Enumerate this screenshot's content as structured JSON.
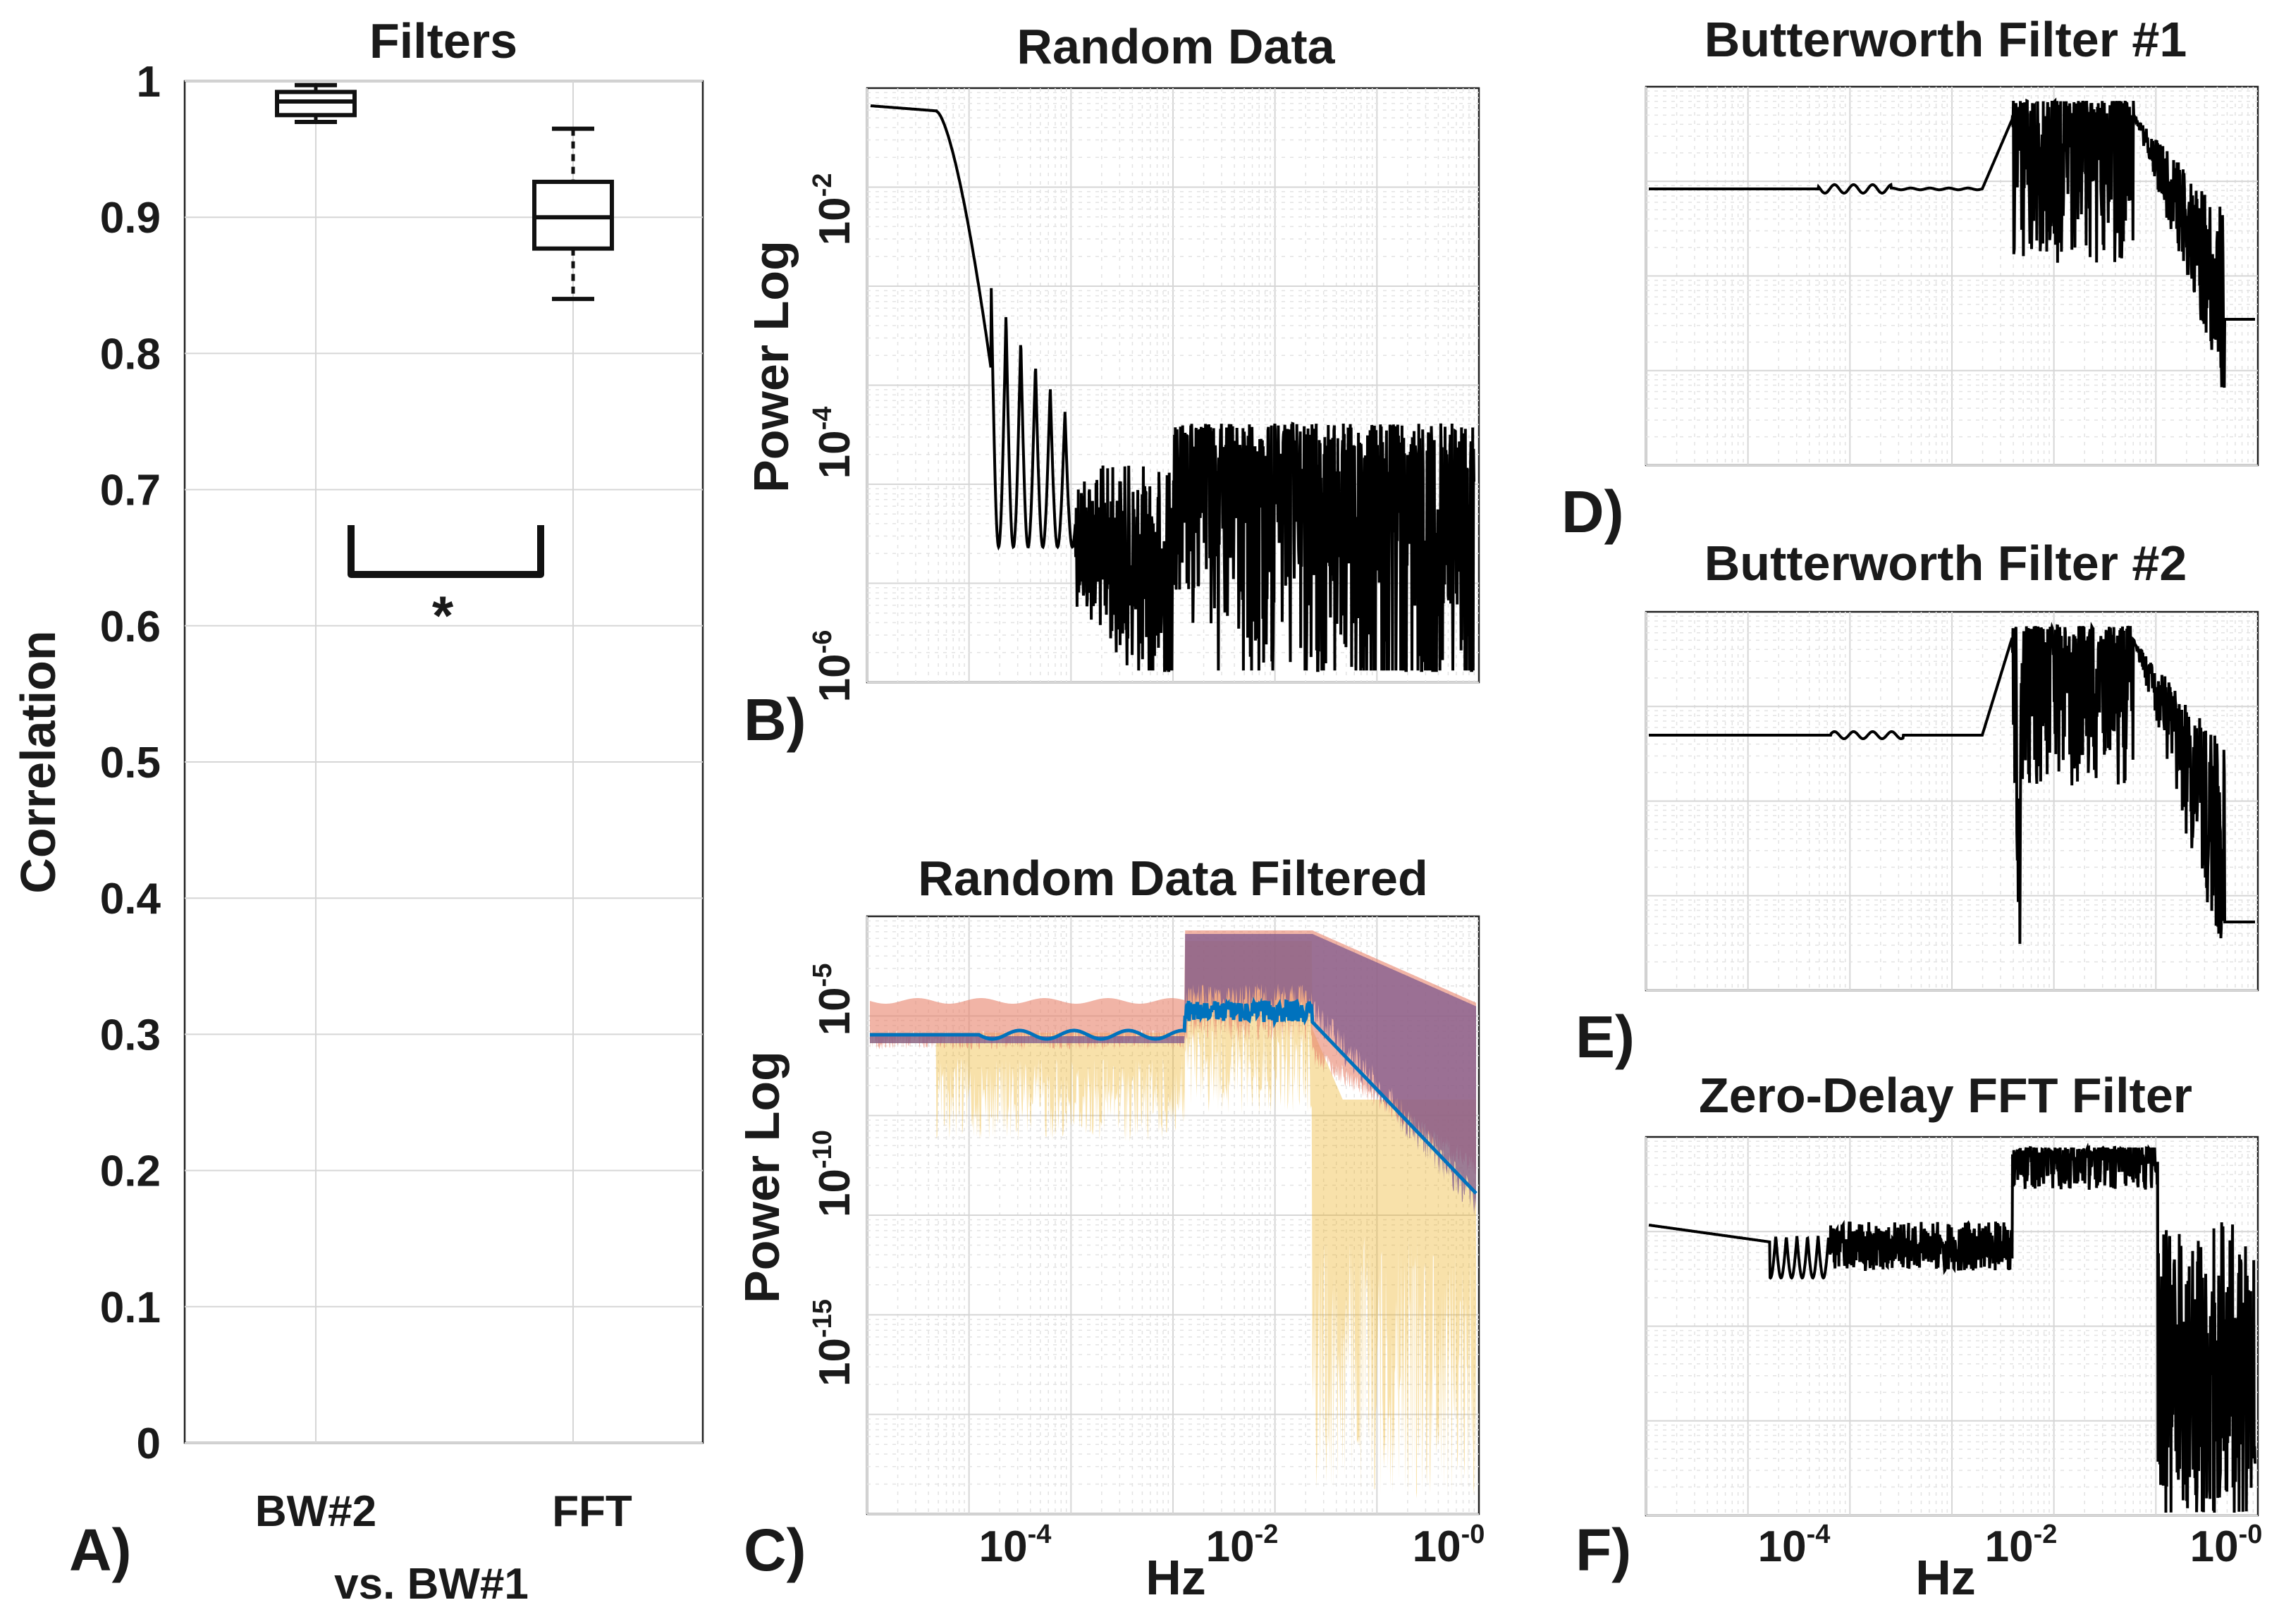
{
  "chart_data": [
    {
      "panel": "A)",
      "type": "box",
      "title": "Filters",
      "ylabel": "Correlation",
      "ylim": [
        0,
        1
      ],
      "yticks": [
        "0",
        "0.1",
        "0.2",
        "0.3",
        "0.4",
        "0.5",
        "0.6",
        "0.7",
        "0.8",
        "0.9",
        "1"
      ],
      "categories": [
        "BW#2",
        "FFT"
      ],
      "xlabel_sub": "vs. BW#1",
      "boxes": [
        {
          "category": "BW#2",
          "min": 0.97,
          "q1": 0.975,
          "median": 0.985,
          "q3": 0.992,
          "max": 0.997
        },
        {
          "category": "FFT",
          "min": 0.84,
          "q1": 0.877,
          "median": 0.9,
          "q3": 0.926,
          "max": 0.965
        }
      ],
      "significance": {
        "between": [
          "BW#2",
          "FFT"
        ],
        "marker": "*"
      },
      "grid": true
    },
    {
      "panel": "B)",
      "type": "line",
      "title": "Random Data",
      "ylabel": "Power Log",
      "xscale": "log",
      "yscale": "log",
      "xlim": [
        3e-06,
        1.2
      ],
      "ylim": [
        8e-07,
        0.8
      ],
      "ytick_labels": [
        {
          "base": "10",
          "exp": "-2"
        },
        {
          "base": "10",
          "exp": "-4"
        },
        {
          "base": "10",
          "exp": "-6"
        }
      ],
      "grid": true,
      "series_color": "#000000"
    },
    {
      "panel": "C)",
      "type": "area",
      "title": "Random Data Filtered",
      "ylabel": "Power Log",
      "xlabel": "Hz",
      "xscale": "log",
      "yscale": "log",
      "xtick_labels": [
        {
          "base": "10",
          "exp": "-4"
        },
        {
          "base": "10",
          "exp": "-2"
        },
        {
          "base": "10",
          "exp": "-0"
        }
      ],
      "ytick_labels": [
        {
          "base": "10",
          "exp": "-5"
        },
        {
          "base": "10",
          "exp": "-10"
        },
        {
          "base": "10",
          "exp": "-15"
        }
      ],
      "grid": true,
      "series_colors": [
        "#0072BD",
        "#EDB120",
        "#E8826A",
        "#7E5A8E"
      ]
    },
    {
      "panel": "D)",
      "type": "line",
      "title": "Butterworth Filter #1",
      "xscale": "log",
      "yscale": "log",
      "grid": true,
      "series_color": "#000000"
    },
    {
      "panel": "E)",
      "type": "line",
      "title": "Butterworth Filter #2",
      "xscale": "log",
      "yscale": "log",
      "grid": true,
      "series_color": "#000000"
    },
    {
      "panel": "F)",
      "type": "line",
      "title": "Zero-Delay FFT Filter",
      "xlabel": "Hz",
      "xscale": "log",
      "yscale": "log",
      "xtick_labels": [
        {
          "base": "10",
          "exp": "-4"
        },
        {
          "base": "10",
          "exp": "-2"
        },
        {
          "base": "10",
          "exp": "-0"
        }
      ],
      "grid": true,
      "series_color": "#000000"
    }
  ]
}
